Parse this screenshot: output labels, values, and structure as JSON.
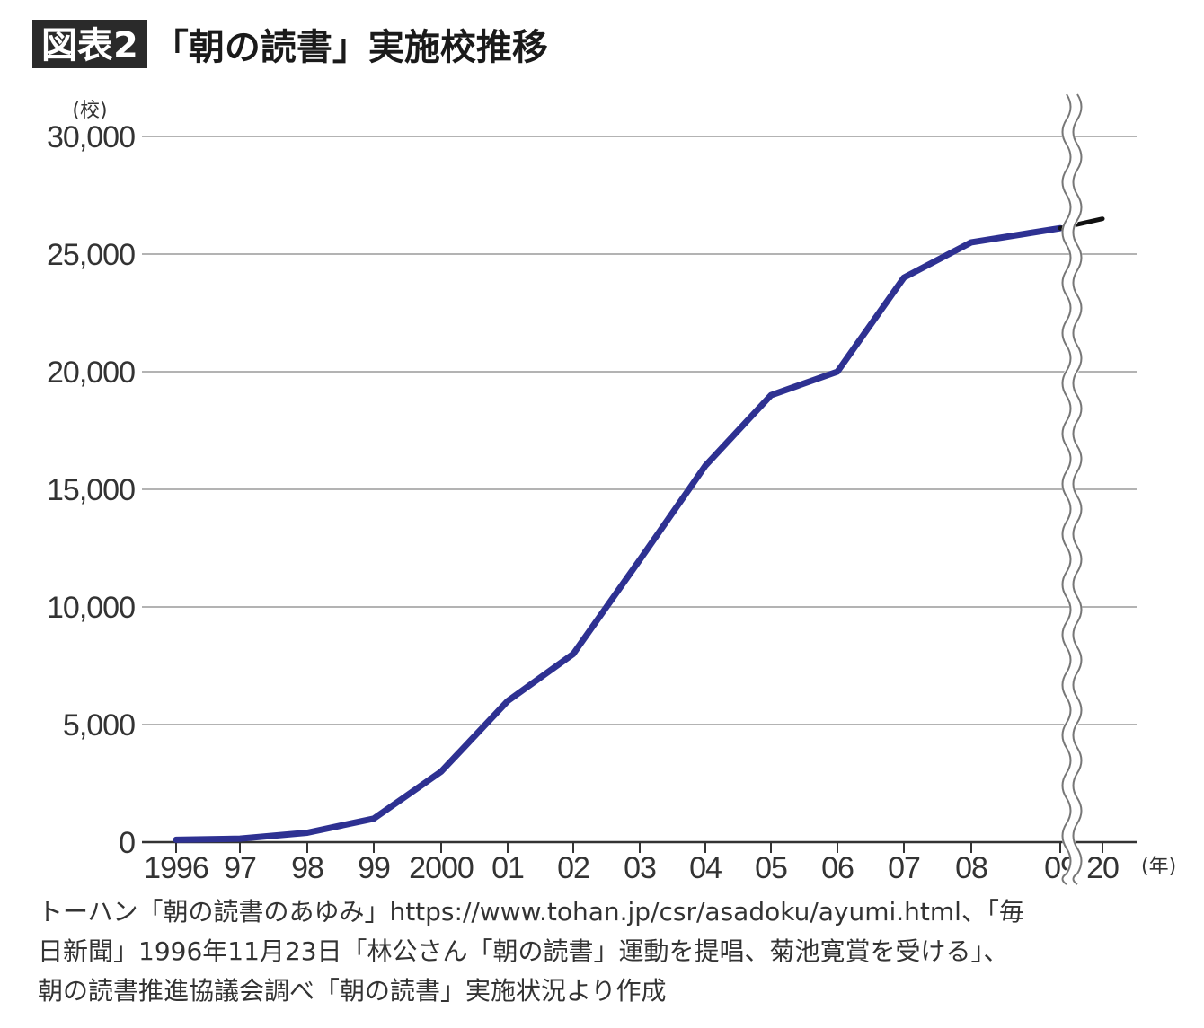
{
  "header": {
    "badge": "図表2",
    "title": "「朝の読書」実施校推移"
  },
  "chart_data": {
    "type": "line",
    "title": "「朝の読書」実施校推移",
    "ylabel": "(校)",
    "xlabel": "(年)",
    "ylim": [
      0,
      30000
    ],
    "yticks": [
      0,
      5000,
      10000,
      15000,
      20000,
      25000,
      30000
    ],
    "ytick_labels": [
      "0",
      "5,000",
      "10,000",
      "15,000",
      "20,000",
      "25,000",
      "30,000"
    ],
    "x_tick_labels": [
      "1996",
      "97",
      "98",
      "99",
      "2000",
      "01",
      "02",
      "03",
      "04",
      "05",
      "06",
      "07",
      "08",
      "09",
      "20"
    ],
    "grid": true,
    "axis_break": "between 09 and 20",
    "series": [
      {
        "color": "#2e3192",
        "x": [
          "1996",
          "97",
          "98",
          "99",
          "2000",
          "01",
          "02",
          "03",
          "04",
          "05",
          "06",
          "07",
          "08",
          "09"
        ],
        "values": [
          100,
          150,
          400,
          1000,
          3000,
          6000,
          8000,
          12000,
          16000,
          19000,
          20000,
          24000,
          25500,
          26100
        ]
      },
      {
        "color": "#111111",
        "x": [
          "09",
          "20"
        ],
        "values": [
          26100,
          26500
        ]
      }
    ]
  },
  "source": {
    "line1": "トーハン「朝の読書のあゆみ」https://www.tohan.jp/csr/asadoku/ayumi.html、「毎",
    "line2": "日新聞」1996年11月23日「林公さん「朝の読書」運動を提唱、菊池寛賞を受ける」、",
    "line3": "朝の読書推進協議会調べ「朝の読書」実施状況より作成"
  }
}
